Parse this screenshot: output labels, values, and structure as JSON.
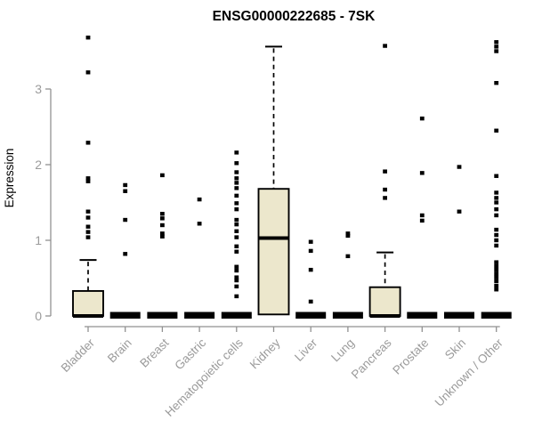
{
  "chart_data": {
    "type": "boxplot",
    "title": "ENSG00000222685 - 7SK",
    "ylabel": "Expression",
    "xlabel": "",
    "yticks": [
      0,
      1,
      2,
      3
    ],
    "ylim": [
      0,
      3.75
    ],
    "grid": false,
    "legend": "none",
    "categories": [
      "Bladder",
      "Brain",
      "Breast",
      "Gastric",
      "Hematopoietic cells",
      "Kidney",
      "Liver",
      "Lung",
      "Pancreas",
      "Prostate",
      "Skin",
      "Unknown / Other"
    ],
    "series": [
      {
        "name": "Bladder",
        "q1": 0,
        "median": 0,
        "q3": 0.33,
        "whisker_low": 0,
        "whisker_high": 0.74,
        "outliers": [
          3.68,
          3.22,
          2.29,
          1.82,
          1.78,
          1.38,
          1.3,
          1.18,
          1.11,
          1.04
        ]
      },
      {
        "name": "Brain",
        "q1": 0,
        "median": 0,
        "q3": 0.02,
        "whisker_low": 0,
        "whisker_high": 0.02,
        "outliers": [
          1.73,
          1.65,
          1.27,
          0.82
        ]
      },
      {
        "name": "Breast",
        "q1": 0,
        "median": 0,
        "q3": 0.02,
        "whisker_low": 0,
        "whisker_high": 0.02,
        "outliers": [
          1.86,
          1.35,
          1.29,
          1.2,
          1.09,
          1.05
        ]
      },
      {
        "name": "Gastric",
        "q1": 0,
        "median": 0,
        "q3": 0.02,
        "whisker_low": 0,
        "whisker_high": 0.02,
        "outliers": [
          1.54,
          1.22
        ]
      },
      {
        "name": "Hematopoietic cells",
        "q1": 0,
        "median": 0,
        "q3": 0.02,
        "whisker_low": 0,
        "whisker_high": 0.02,
        "outliers": [
          2.16,
          2.02,
          1.9,
          1.82,
          1.76,
          1.69,
          1.59,
          1.49,
          1.41,
          1.27,
          1.21,
          1.12,
          1.04,
          0.92,
          0.85,
          0.65,
          0.6,
          0.51,
          0.47,
          0.39,
          0.26
        ]
      },
      {
        "name": "Kidney",
        "q1": 0.02,
        "median": 1.03,
        "q3": 1.68,
        "whisker_low": 0,
        "whisker_high": 3.56,
        "outliers": []
      },
      {
        "name": "Liver",
        "q1": 0,
        "median": 0,
        "q3": 0.02,
        "whisker_low": 0,
        "whisker_high": 0.02,
        "outliers": [
          0.98,
          0.86,
          0.61,
          0.19
        ]
      },
      {
        "name": "Lung",
        "q1": 0,
        "median": 0,
        "q3": 0.02,
        "whisker_low": 0,
        "whisker_high": 0.02,
        "outliers": [
          1.09,
          1.06,
          0.79
        ]
      },
      {
        "name": "Pancreas",
        "q1": 0,
        "median": 0,
        "q3": 0.38,
        "whisker_low": 0,
        "whisker_high": 0.84,
        "outliers": [
          3.57,
          1.91,
          1.67,
          1.56
        ]
      },
      {
        "name": "Prostate",
        "q1": 0,
        "median": 0,
        "q3": 0.02,
        "whisker_low": 0,
        "whisker_high": 0.02,
        "outliers": [
          2.61,
          1.89,
          1.33,
          1.26
        ]
      },
      {
        "name": "Skin",
        "q1": 0,
        "median": 0,
        "q3": 0.02,
        "whisker_low": 0,
        "whisker_high": 0.02,
        "outliers": [
          1.97,
          1.38
        ]
      },
      {
        "name": "Unknown / Other",
        "q1": 0,
        "median": 0,
        "q3": 0.02,
        "whisker_low": 0,
        "whisker_high": 0.02,
        "outliers": [
          3.62,
          3.56,
          3.5,
          3.08,
          2.45,
          1.85,
          1.63,
          1.56,
          1.5,
          1.41,
          1.33,
          1.14,
          1.07,
          1.0,
          0.93,
          0.71,
          0.66,
          0.61,
          0.56,
          0.51,
          0.46,
          0.4,
          0.35
        ]
      }
    ],
    "colors": {
      "box_fill": "#ECE7CC",
      "box_stroke": "#000000",
      "median": "#000000",
      "outlier": "#000000",
      "axis": "#919191",
      "tick_label": "#9b9b9b",
      "title": "#000000",
      "background": "#ffffff"
    }
  }
}
